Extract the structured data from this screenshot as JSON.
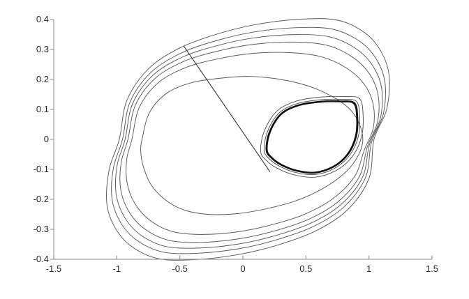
{
  "figure": {
    "background": "#ffffff",
    "axis_line_color": "#9b9b9b",
    "tick_color": "#9b9b9b",
    "tick_label_color": "#262626"
  },
  "chart_data": {
    "type": "line",
    "subtype": "phase-portrait-trajectories",
    "title": "",
    "xlabel": "",
    "ylabel": "",
    "xlim": [
      -1.5,
      1.5
    ],
    "ylim": [
      -0.4,
      0.4
    ],
    "xticks": [
      "-1.5",
      "-1",
      "-0.5",
      "0",
      "0.5",
      "1",
      "1.5"
    ],
    "xtick_values": [
      -1.5,
      -1,
      -0.5,
      0,
      0.5,
      1,
      1.5
    ],
    "yticks": [
      "0.4",
      "0.3",
      "0.2",
      "0.1",
      "0",
      "-0.1",
      "-0.2",
      "-0.3",
      "-0.4"
    ],
    "ytick_values": [
      0.4,
      0.3,
      0.2,
      0.1,
      0,
      -0.1,
      -0.2,
      -0.3,
      -0.4
    ],
    "grid": false,
    "legend": false,
    "axes_box": "left-bottom-only",
    "series": [
      {
        "name": "outer-spiral-loops",
        "type": "interp-closed",
        "color": "#575757",
        "width": 0.95,
        "description": "trajectory spiralling outward, loops bunch up against the large outer limit cycle",
        "weights": [
          1,
          0.86,
          0.745,
          0.62,
          0.445,
          0
        ],
        "outer": [
          [
            -0.98,
            0.0
          ],
          [
            -0.92,
            0.13
          ],
          [
            -0.75,
            0.235
          ],
          [
            -0.5,
            0.305
          ],
          [
            -0.2,
            0.352
          ],
          [
            0.1,
            0.383
          ],
          [
            0.45,
            0.401
          ],
          [
            0.75,
            0.398
          ],
          [
            0.97,
            0.355
          ],
          [
            1.1,
            0.29
          ],
          [
            1.16,
            0.21
          ],
          [
            1.14,
            0.1
          ],
          [
            1.04,
            0.0
          ],
          [
            1.0,
            -0.13
          ],
          [
            0.83,
            -0.235
          ],
          [
            0.58,
            -0.305
          ],
          [
            0.28,
            -0.352
          ],
          [
            -0.02,
            -0.383
          ],
          [
            -0.37,
            -0.401
          ],
          [
            -0.67,
            -0.398
          ],
          [
            -0.89,
            -0.355
          ],
          [
            -1.02,
            -0.29
          ],
          [
            -1.08,
            -0.21
          ],
          [
            -1.06,
            -0.1
          ]
        ],
        "inner": [
          [
            -0.8,
            0.0
          ],
          [
            -0.74,
            0.09
          ],
          [
            -0.6,
            0.155
          ],
          [
            -0.4,
            0.19
          ],
          [
            -0.16,
            0.205
          ],
          [
            0.06,
            0.21
          ],
          [
            0.3,
            0.2
          ],
          [
            0.52,
            0.178
          ],
          [
            0.7,
            0.145
          ],
          [
            0.85,
            0.1
          ],
          [
            0.93,
            0.045
          ],
          [
            0.95,
            -0.01
          ],
          [
            0.9,
            -0.065
          ],
          [
            0.8,
            -0.115
          ],
          [
            0.63,
            -0.165
          ],
          [
            0.42,
            -0.205
          ],
          [
            0.18,
            -0.232
          ],
          [
            -0.05,
            -0.248
          ],
          [
            -0.28,
            -0.25
          ],
          [
            -0.47,
            -0.235
          ],
          [
            -0.62,
            -0.2
          ],
          [
            -0.73,
            -0.15
          ],
          [
            -0.79,
            -0.09
          ],
          [
            -0.81,
            -0.04
          ]
        ]
      },
      {
        "name": "small-cycle-approach-loops",
        "type": "closed-scaled",
        "color": "#4f4f4f",
        "width": 0.95,
        "center": [
          0.55,
          0.005
        ],
        "scales": [
          1.12,
          1.045
        ],
        "base": [
          [
            0.185,
            -0.035
          ],
          [
            0.21,
            0.025
          ],
          [
            0.3,
            0.085
          ],
          [
            0.44,
            0.115
          ],
          [
            0.62,
            0.127
          ],
          [
            0.78,
            0.128
          ],
          [
            0.885,
            0.122
          ],
          [
            0.91,
            0.075
          ],
          [
            0.9,
            0.01
          ],
          [
            0.835,
            -0.05
          ],
          [
            0.72,
            -0.092
          ],
          [
            0.57,
            -0.112
          ],
          [
            0.42,
            -0.105
          ],
          [
            0.3,
            -0.085
          ],
          [
            0.225,
            -0.062
          ]
        ]
      },
      {
        "name": "small-limit-cycle",
        "type": "closed-scaled",
        "color": "#101010",
        "width": 1.6,
        "center": [
          0.55,
          0.005
        ],
        "scales": [
          1.0,
          0.98
        ],
        "base": [
          [
            0.185,
            -0.035
          ],
          [
            0.21,
            0.025
          ],
          [
            0.3,
            0.085
          ],
          [
            0.44,
            0.115
          ],
          [
            0.62,
            0.127
          ],
          [
            0.78,
            0.128
          ],
          [
            0.885,
            0.122
          ],
          [
            0.91,
            0.075
          ],
          [
            0.9,
            0.01
          ],
          [
            0.835,
            -0.05
          ],
          [
            0.72,
            -0.092
          ],
          [
            0.57,
            -0.112
          ],
          [
            0.42,
            -0.105
          ],
          [
            0.3,
            -0.085
          ],
          [
            0.225,
            -0.062
          ]
        ]
      },
      {
        "name": "transient-line",
        "type": "open",
        "color": "#3a3a3a",
        "width": 1.15,
        "points": [
          [
            -0.47,
            0.312
          ],
          [
            0.215,
            -0.108
          ]
        ]
      }
    ]
  }
}
